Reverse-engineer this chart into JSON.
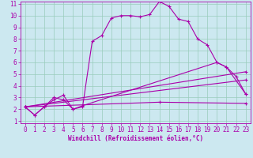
{
  "xlabel": "Windchill (Refroidissement éolien,°C)",
  "xlim": [
    -0.5,
    23.5
  ],
  "ylim": [
    0.8,
    11.2
  ],
  "xticks": [
    0,
    1,
    2,
    3,
    4,
    5,
    6,
    7,
    8,
    9,
    10,
    11,
    12,
    13,
    14,
    15,
    16,
    17,
    18,
    19,
    20,
    21,
    22,
    23
  ],
  "yticks": [
    1,
    2,
    3,
    4,
    5,
    6,
    7,
    8,
    9,
    10,
    11
  ],
  "background_color": "#cce8f0",
  "line_color": "#aa00aa",
  "grid_color": "#99ccbb",
  "curve1_x": [
    0,
    1,
    2,
    3,
    4,
    5,
    6,
    7,
    8,
    9,
    10,
    11,
    12,
    13,
    14,
    15,
    16,
    17,
    18,
    19,
    20,
    21,
    22,
    23
  ],
  "curve1_y": [
    2.2,
    1.5,
    2.2,
    3.0,
    2.8,
    2.0,
    2.2,
    7.8,
    8.3,
    9.8,
    10.0,
    10.0,
    9.9,
    10.1,
    11.2,
    10.8,
    9.7,
    9.5,
    8.0,
    7.5,
    6.0,
    5.6,
    4.8,
    3.3
  ],
  "curve2_x": [
    0,
    1,
    2,
    3,
    4,
    5,
    6,
    20,
    21,
    23
  ],
  "curve2_y": [
    2.2,
    1.5,
    2.2,
    2.8,
    3.2,
    2.0,
    2.3,
    6.0,
    5.6,
    3.3
  ],
  "line1_x": [
    0,
    23
  ],
  "line1_y": [
    2.2,
    5.2
  ],
  "line2_x": [
    0,
    23
  ],
  "line2_y": [
    2.2,
    4.5
  ],
  "line3_x": [
    0,
    14,
    23
  ],
  "line3_y": [
    2.2,
    2.6,
    2.5
  ],
  "linewidth": 0.8,
  "markersize": 3.5,
  "tick_fontsize": 5.5,
  "xlabel_fontsize": 5.5
}
